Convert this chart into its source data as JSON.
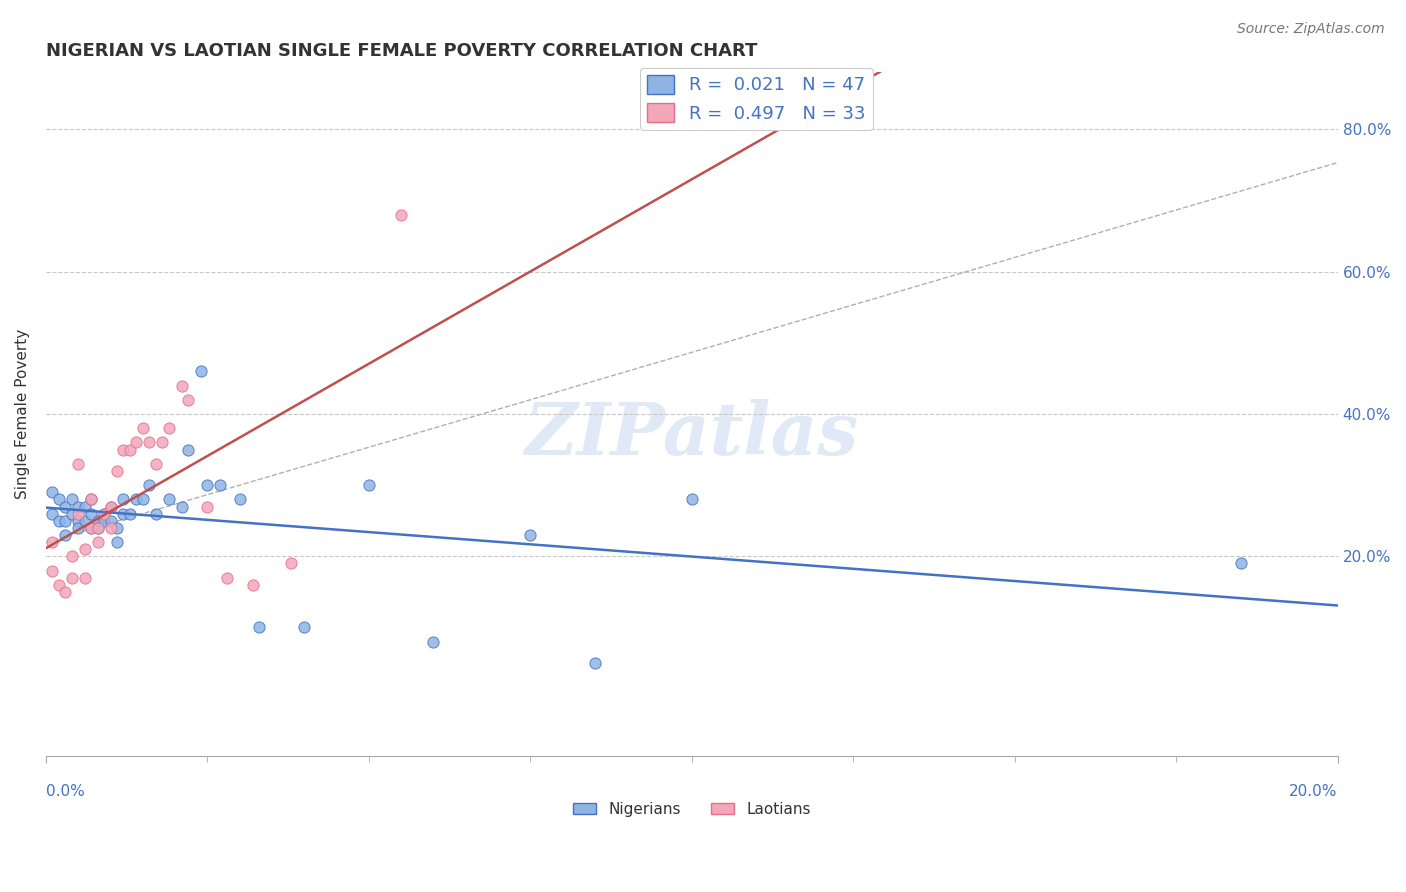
{
  "title": "NIGERIAN VS LAOTIAN SINGLE FEMALE POVERTY CORRELATION CHART",
  "source": "Source: ZipAtlas.com",
  "ylabel": "Single Female Poverty",
  "xmin": 0.0,
  "xmax": 0.2,
  "ymin": -0.08,
  "ymax": 0.88,
  "watermark": "ZIPatlas",
  "nigerian_color": "#8eb4e3",
  "laotian_color": "#f4a7b9",
  "nigerian_edge_color": "#4472c4",
  "laotian_edge_color": "#e07090",
  "trendline_nigerian_color": "#4472c4",
  "trendline_laotian_color": "#c0504d",
  "background_color": "#ffffff",
  "grid_color": "#c8c8c8",
  "ytick_color": "#4472c4",
  "xtick_color": "#4472c4",
  "right_ytick_labels": [
    "20.0%",
    "40.0%",
    "60.0%",
    "80.0%"
  ],
  "right_ytick_vals": [
    0.2,
    0.4,
    0.6,
    0.8
  ],
  "legend_label_nigerian": "Nigerians",
  "legend_label_laotian": "Laotians",
  "nigerian_R": 0.021,
  "nigerian_N": 47,
  "laotian_R": 0.497,
  "laotian_N": 33,
  "title_fontsize": 13,
  "source_fontsize": 10,
  "tick_fontsize": 11,
  "legend_fontsize": 13,
  "nigerian_x": [
    0.001,
    0.001,
    0.002,
    0.002,
    0.003,
    0.003,
    0.003,
    0.004,
    0.004,
    0.005,
    0.005,
    0.005,
    0.006,
    0.006,
    0.007,
    0.007,
    0.007,
    0.008,
    0.008,
    0.009,
    0.009,
    0.01,
    0.01,
    0.011,
    0.011,
    0.012,
    0.012,
    0.013,
    0.014,
    0.015,
    0.016,
    0.017,
    0.019,
    0.021,
    0.022,
    0.024,
    0.025,
    0.027,
    0.03,
    0.033,
    0.04,
    0.05,
    0.06,
    0.075,
    0.085,
    0.1,
    0.185
  ],
  "nigerian_y": [
    0.26,
    0.29,
    0.25,
    0.28,
    0.27,
    0.25,
    0.23,
    0.26,
    0.28,
    0.25,
    0.24,
    0.27,
    0.27,
    0.25,
    0.26,
    0.24,
    0.28,
    0.25,
    0.24,
    0.26,
    0.25,
    0.27,
    0.25,
    0.24,
    0.22,
    0.26,
    0.28,
    0.26,
    0.28,
    0.28,
    0.3,
    0.26,
    0.28,
    0.27,
    0.35,
    0.46,
    0.3,
    0.3,
    0.28,
    0.1,
    0.1,
    0.3,
    0.08,
    0.23,
    0.05,
    0.28,
    0.19
  ],
  "laotian_x": [
    0.001,
    0.001,
    0.002,
    0.003,
    0.004,
    0.004,
    0.005,
    0.005,
    0.006,
    0.006,
    0.007,
    0.007,
    0.008,
    0.008,
    0.009,
    0.01,
    0.01,
    0.011,
    0.012,
    0.013,
    0.014,
    0.015,
    0.016,
    0.017,
    0.018,
    0.019,
    0.021,
    0.022,
    0.025,
    0.028,
    0.032,
    0.038,
    0.055
  ],
  "laotian_y": [
    0.22,
    0.18,
    0.16,
    0.15,
    0.17,
    0.2,
    0.33,
    0.26,
    0.21,
    0.17,
    0.24,
    0.28,
    0.24,
    0.22,
    0.26,
    0.24,
    0.27,
    0.32,
    0.35,
    0.35,
    0.36,
    0.38,
    0.36,
    0.33,
    0.36,
    0.38,
    0.44,
    0.42,
    0.27,
    0.17,
    0.16,
    0.19,
    0.68
  ]
}
